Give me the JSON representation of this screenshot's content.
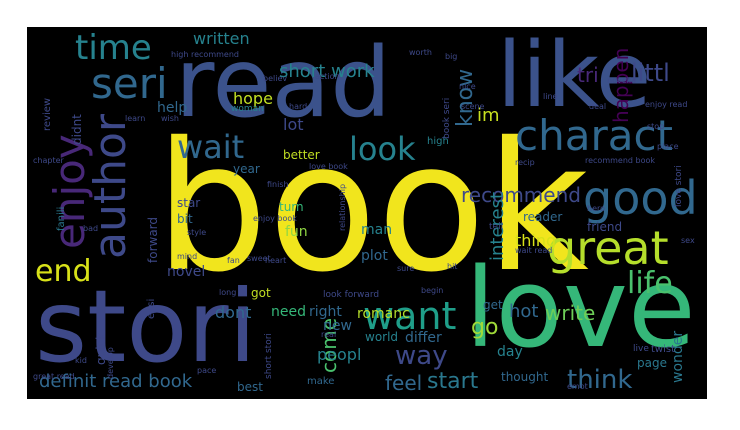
{
  "wordcloud": {
    "words": [
      {
        "text": "book",
        "color": "#f1e51d"
      },
      {
        "text": "read",
        "color": "#3b528b"
      },
      {
        "text": "like",
        "color": "#3b528b"
      },
      {
        "text": "love",
        "color": "#35b779"
      },
      {
        "text": "stori",
        "color": "#3e4989"
      },
      {
        "text": "great",
        "color": "#b5de2b"
      },
      {
        "text": "charact",
        "color": "#31688e"
      },
      {
        "text": "good",
        "color": "#31688e"
      },
      {
        "text": "author",
        "color": "#3e4989"
      },
      {
        "text": "enjoy",
        "color": "#482878"
      },
      {
        "text": "seri",
        "color": "#31688e"
      },
      {
        "text": "time",
        "color": "#26828e"
      },
      {
        "text": "end",
        "color": "#d8e219"
      },
      {
        "text": "want",
        "color": "#1f9e89"
      },
      {
        "text": "wait",
        "color": "#31688e"
      },
      {
        "text": "look",
        "color": "#26828e"
      },
      {
        "text": "way",
        "color": "#3e4989"
      },
      {
        "text": "life",
        "color": "#4ac16d"
      },
      {
        "text": "recommend",
        "color": "#3e4989"
      },
      {
        "text": "short work",
        "color": "#26828e"
      },
      {
        "text": "written",
        "color": "#26828e"
      },
      {
        "text": "know",
        "color": "#31688e"
      },
      {
        "text": "littl",
        "color": "#3e4989"
      },
      {
        "text": "happen",
        "color": "#440154"
      },
      {
        "text": "tri",
        "color": "#482878"
      },
      {
        "text": "think",
        "color": "#31688e"
      },
      {
        "text": "start",
        "color": "#2a788e"
      },
      {
        "text": "feel",
        "color": "#31688e"
      },
      {
        "text": "definit read book",
        "color": "#31688e"
      },
      {
        "text": "come",
        "color": "#4ac16d"
      },
      {
        "text": "go",
        "color": "#a0da39"
      },
      {
        "text": "hot",
        "color": "#31688e"
      },
      {
        "text": "write",
        "color": "#6ece58"
      },
      {
        "text": "thing",
        "color": "#d8e219"
      },
      {
        "text": "im",
        "color": "#c8e020"
      },
      {
        "text": "interest",
        "color": "#26828e"
      },
      {
        "text": "hope",
        "color": "#c2df23"
      },
      {
        "text": "help",
        "color": "#31688e"
      },
      {
        "text": "lot",
        "color": "#3e4989"
      },
      {
        "text": "better",
        "color": "#c2df23"
      },
      {
        "text": "dont",
        "color": "#31688e"
      },
      {
        "text": "need",
        "color": "#35b779"
      },
      {
        "text": "right",
        "color": "#31688e"
      },
      {
        "text": "romanc",
        "color": "#b5de2b"
      },
      {
        "text": "new",
        "color": "#31688e"
      },
      {
        "text": "peopl",
        "color": "#26828e"
      },
      {
        "text": "differ",
        "color": "#31688e"
      },
      {
        "text": "world",
        "color": "#26828e"
      },
      {
        "text": "novel",
        "color": "#3e4989"
      },
      {
        "text": "fun",
        "color": "#90d743"
      },
      {
        "text": "man",
        "color": "#26828e"
      },
      {
        "text": "plot",
        "color": "#31688e"
      },
      {
        "text": "turn",
        "color": "#35b779"
      },
      {
        "text": "got",
        "color": "#c2df23"
      },
      {
        "text": "day",
        "color": "#26828e"
      },
      {
        "text": "get",
        "color": "#31688e"
      },
      {
        "text": "reader",
        "color": "#31688e"
      },
      {
        "text": "friend",
        "color": "#3e4989"
      },
      {
        "text": "wonder",
        "color": "#2a788e"
      },
      {
        "text": "page",
        "color": "#2a788e"
      },
      {
        "text": "thought",
        "color": "#31688e"
      },
      {
        "text": "make",
        "color": "#31688e"
      },
      {
        "text": "best",
        "color": "#31688e"
      },
      {
        "text": "quick",
        "color": "#3e4989"
      },
      {
        "text": "year",
        "color": "#31688e"
      },
      {
        "text": "star",
        "color": "#3e4989"
      },
      {
        "text": "bit",
        "color": "#31688e"
      },
      {
        "text": "forward",
        "color": "#3e4989"
      },
      {
        "text": "didnt",
        "color": "#3e4989"
      },
      {
        "text": "fanili",
        "color": "#2a788e"
      },
      {
        "text": "high",
        "color": "#26828e"
      },
      {
        "text": "short stori",
        "color": "#3e4989"
      },
      {
        "text": "look forward",
        "color": "#3e4989"
      },
      {
        "text": "easi",
        "color": "#3e4989"
      },
      {
        "text": "woman",
        "color": "#26828e"
      },
      {
        "text": "hard",
        "color": "#3e4989"
      },
      {
        "text": "action",
        "color": "#3e4989"
      },
      {
        "text": "believ",
        "color": "#3e4989"
      },
      {
        "text": "review",
        "color": "#3e4989"
      },
      {
        "text": "love stori",
        "color": "#3e4989"
      },
      {
        "text": "book seri",
        "color": "#3e4989"
      },
      {
        "text": "recip",
        "color": "#3e4989"
      },
      {
        "text": "tell",
        "color": "#3e4989"
      },
      {
        "text": "real",
        "color": "#3e4989"
      },
      {
        "text": "twist",
        "color": "#3e4989"
      },
      {
        "text": "live",
        "color": "#3e4989"
      },
      {
        "text": "long",
        "color": "#3e4989"
      },
      {
        "text": "sex",
        "color": "#3e4989"
      },
      {
        "text": "finish",
        "color": "#3e4989"
      },
      {
        "text": "scene",
        "color": "#3e4989"
      },
      {
        "text": "begin",
        "color": "#3e4989"
      },
      {
        "text": "develop",
        "color": "#3e4989"
      },
      {
        "text": "relationship",
        "color": "#3e4989"
      },
      {
        "text": "bad",
        "color": "#3e4989"
      },
      {
        "text": "emot",
        "color": "#3e4989"
      },
      {
        "text": "line",
        "color": "#3e4989"
      },
      {
        "text": "enjoy book",
        "color": "#3e4989"
      },
      {
        "text": "great read",
        "color": "#3e4989"
      },
      {
        "text": "love book",
        "color": "#3e4989"
      },
      {
        "text": "hit",
        "color": "#3e4989"
      },
      {
        "text": "hero",
        "color": "#3e4989"
      },
      {
        "text": "nice",
        "color": "#3e4989"
      },
      {
        "text": "heart",
        "color": "#3e4989"
      },
      {
        "text": "sweet",
        "color": "#3e4989"
      },
      {
        "text": "worth",
        "color": "#3e4989"
      },
      {
        "text": "pace",
        "color": "#3e4989"
      },
      {
        "text": "place",
        "color": "#3e4989"
      },
      {
        "text": "kid",
        "color": "#3e4989"
      },
      {
        "text": "chapter",
        "color": "#3e4989"
      },
      {
        "text": "wish",
        "color": "#3e4989"
      },
      {
        "text": "learn",
        "color": "#3e4989"
      },
      {
        "text": "fan",
        "color": "#3e4989"
      },
      {
        "text": "mind",
        "color": "#3e4989"
      },
      {
        "text": "style",
        "color": "#3e4989"
      },
      {
        "text": "enjoy read",
        "color": "#3e4989"
      },
      {
        "text": "recommend book",
        "color": "#3e4989"
      },
      {
        "text": "high recommend",
        "color": "#3e4989"
      },
      {
        "text": "wait read",
        "color": "#3e4989"
      },
      {
        "text": "sure",
        "color": "#3e4989"
      },
      {
        "text": "novella",
        "color": "#3e4989"
      },
      {
        "text": "big",
        "color": "#3e4989"
      },
      {
        "text": "deal",
        "color": "#3e4989"
      },
      {
        "text": "stop",
        "color": "#3e4989"
      }
    ]
  }
}
